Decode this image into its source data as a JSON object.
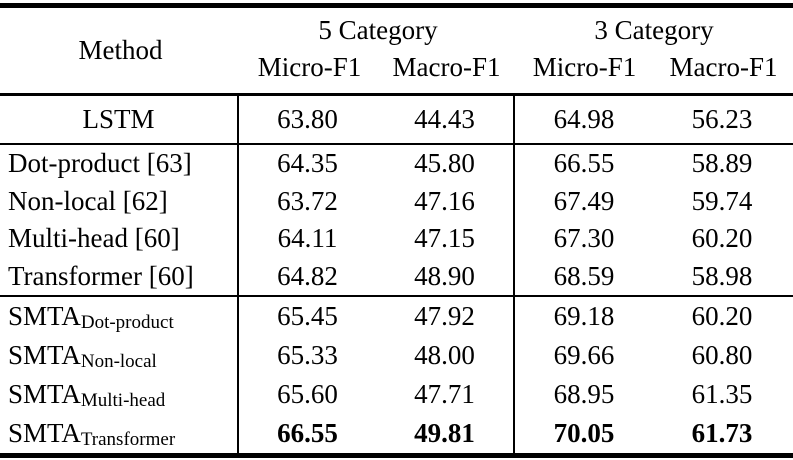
{
  "table": {
    "header": {
      "method_label": "Method",
      "groups": [
        {
          "label": "5 Category",
          "columns": [
            "Micro-F1",
            "Macro-F1"
          ]
        },
        {
          "label": "3 Category",
          "columns": [
            "Micro-F1",
            "Macro-F1"
          ]
        }
      ]
    },
    "rows": [
      {
        "method": "LSTM",
        "sub": "",
        "values": [
          "63.80",
          "44.43",
          "64.98",
          "56.23"
        ]
      },
      {
        "method": "Dot-product [63]",
        "sub": "",
        "values": [
          "64.35",
          "45.80",
          "66.55",
          "58.89"
        ]
      },
      {
        "method": "Non-local [62]",
        "sub": "",
        "values": [
          "63.72",
          "47.16",
          "67.49",
          "59.74"
        ]
      },
      {
        "method": "Multi-head [60]",
        "sub": "",
        "values": [
          "64.11",
          "47.15",
          "67.30",
          "60.20"
        ]
      },
      {
        "method": "Transformer [60]",
        "sub": "",
        "values": [
          "64.82",
          "48.90",
          "68.59",
          "58.98"
        ]
      },
      {
        "method": "SMTA",
        "sub": "Dot-product",
        "values": [
          "65.45",
          "47.92",
          "69.18",
          "60.20"
        ]
      },
      {
        "method": "SMTA",
        "sub": "Non-local",
        "values": [
          "65.33",
          "48.00",
          "69.66",
          "60.80"
        ]
      },
      {
        "method": "SMTA",
        "sub": "Multi-head",
        "values": [
          "65.60",
          "47.71",
          "68.95",
          "61.35"
        ]
      },
      {
        "method": "SMTA",
        "sub": "Transformer",
        "values": [
          "66.55",
          "49.81",
          "70.05",
          "61.73"
        ]
      }
    ],
    "colors": {
      "text": "#000000",
      "background": "#ffffff",
      "rule": "#000000"
    }
  }
}
